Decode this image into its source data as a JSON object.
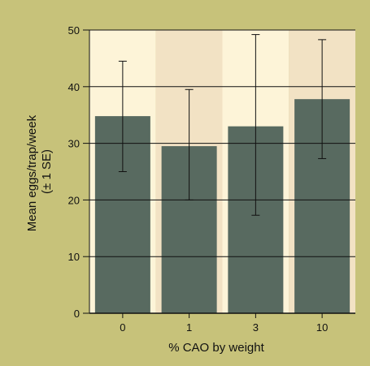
{
  "chart_data": {
    "type": "bar",
    "categories": [
      "0",
      "1",
      "3",
      "10"
    ],
    "values": [
      34.8,
      29.5,
      33.0,
      37.8
    ],
    "error_high": [
      44.5,
      39.5,
      49.2,
      48.3
    ],
    "error_low": [
      25.0,
      20.0,
      17.3,
      27.3
    ],
    "xlabel": "% CAO by weight",
    "ylabel_line1": "Mean eggs/trap/week",
    "ylabel_line2": "(± 1 SE)",
    "ylim": [
      0,
      50
    ],
    "yticks": [
      0,
      10,
      20,
      30,
      40,
      50
    ],
    "grid": true,
    "legend": "none"
  },
  "colors": {
    "background": "#c7c27a",
    "band_light": "#fdf4d8",
    "band_dark": "#f2e2c4",
    "bar": "#586a60",
    "grid": "#111111"
  }
}
